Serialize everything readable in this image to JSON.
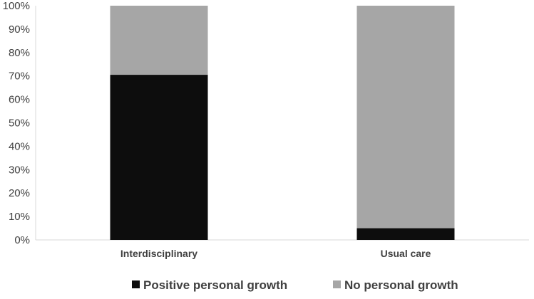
{
  "chart_data": {
    "type": "bar",
    "stacked": true,
    "categories": [
      "Interdisciplinary",
      "Usual care"
    ],
    "series": [
      {
        "name": "Positive personal growth",
        "values": [
          70.5,
          5
        ],
        "color": "#0d0d0d"
      },
      {
        "name": "No personal growth",
        "values": [
          29.5,
          95
        ],
        "color": "#a6a6a6"
      }
    ],
    "y_ticks": [
      "0%",
      "10%",
      "20%",
      "30%",
      "40%",
      "50%",
      "60%",
      "70%",
      "80%",
      "90%",
      "100%"
    ],
    "ylim": [
      0,
      100
    ],
    "grid": false,
    "legend_position": "bottom",
    "axis_color": "#d9d9d9"
  }
}
